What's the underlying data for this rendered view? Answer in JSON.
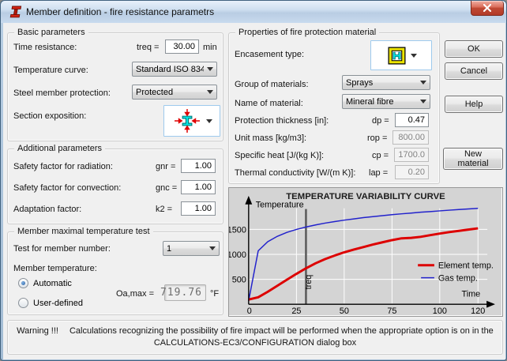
{
  "window": {
    "title": "Member definition  - fire resistance parametrs"
  },
  "basic": {
    "legend": "Basic parameters",
    "time_resistance_label": "Time resistance:",
    "treq_prefix": "treq =",
    "treq_value": "30.00",
    "treq_unit": "min",
    "temperature_curve_label": "Temperature curve:",
    "temperature_curve_value": "Standard ISO 834",
    "steel_protection_label": "Steel member protection:",
    "steel_protection_value": "Protected",
    "section_exposition_label": "Section exposition:",
    "section_exposition_icon": "i-section-exposed-four-sides-icon"
  },
  "additional": {
    "legend": "Additional parameters",
    "radiation_label": "Safety factor for radiation:",
    "radiation_prefix": "gnr =",
    "radiation_value": "1.00",
    "convection_label": "Safety factor for convection:",
    "convection_prefix": "gnc =",
    "convection_value": "1.00",
    "adaptation_label": "Adaptation factor:",
    "adaptation_prefix": "k2 =",
    "adaptation_value": "1.00"
  },
  "member_test": {
    "legend": "Member maximal temperature test",
    "test_number_label": "Test for member number:",
    "test_number_value": "1",
    "member_temperature_label": "Member temperature:",
    "automatic_label": "Automatic",
    "automatic_selected": true,
    "user_defined_label": "User-defined",
    "oamax_prefix": "Oa,max =",
    "oamax_value": "719.76",
    "oamax_unit": "°F"
  },
  "protection": {
    "legend": "Properties of fire protection material",
    "encasement_label": "Encasement type:",
    "encasement_icon": "box-encasement-icon",
    "group_label": "Group of materials:",
    "group_value": "Sprays",
    "name_label": "Name of material:",
    "name_value": "Mineral fibre",
    "thickness_label": "Protection thickness [in]:",
    "thickness_prefix": "dp =",
    "thickness_value": "0.47",
    "unit_mass_label": "Unit mass [kg/m3]:",
    "unit_mass_prefix": "rop =",
    "unit_mass_value": "800.00",
    "specific_heat_label": "Specific heat  [J/(kg K)]:",
    "specific_heat_prefix": "cp =",
    "specific_heat_value": "1700.0",
    "conductivity_label": "Thermal conductivity  [W/(m K)]:",
    "conductivity_prefix": "lap =",
    "conductivity_value": "0.20"
  },
  "buttons": {
    "ok": "OK",
    "cancel": "Cancel",
    "help": "Help",
    "new_material": "New material"
  },
  "warning": {
    "prefix": "Warning !!!",
    "line1": "Calculations recognizing the possibility of fire impact will be performed when the appropriate option is on in the",
    "line2": "CALCULATIONS-EC3/CONFIGURATION dialog box"
  },
  "chart_data": {
    "type": "line",
    "title": "TEMPERATURE VARIABILITY CURVE",
    "xlabel": "Time",
    "ylabel": "Temperature",
    "xlim": [
      0,
      120
    ],
    "ylim": [
      0,
      1950
    ],
    "x_ticks": [
      0,
      25,
      50,
      75,
      100,
      120
    ],
    "y_ticks": [
      500,
      1000,
      1500
    ],
    "grid": true,
    "legend_position": "right-middle",
    "annotations": [
      {
        "type": "vline",
        "x": 30,
        "label": "treq",
        "color": "#5c5c5c"
      }
    ],
    "series": [
      {
        "name": "Element temp.",
        "color": "#dd0000",
        "width": 3,
        "x": [
          0,
          5,
          10,
          15,
          20,
          25,
          30,
          35,
          40,
          45,
          50,
          55,
          60,
          65,
          70,
          75,
          80,
          85,
          90,
          95,
          100,
          105,
          110,
          115,
          120
        ],
        "y": [
          95,
          140,
          250,
          370,
          490,
          610,
          720,
          820,
          905,
          975,
          1040,
          1095,
          1145,
          1195,
          1240,
          1285,
          1320,
          1330,
          1350,
          1385,
          1415,
          1445,
          1470,
          1495,
          1520
        ]
      },
      {
        "name": "Gas temp.",
        "color": "#2222cc",
        "width": 1.5,
        "x": [
          0,
          5,
          10,
          15,
          20,
          25,
          30,
          35,
          40,
          45,
          50,
          55,
          60,
          65,
          70,
          75,
          80,
          85,
          90,
          95,
          100,
          105,
          110,
          115,
          120
        ],
        "y": [
          68,
          1070,
          1253,
          1361,
          1439,
          1498,
          1547,
          1589,
          1625,
          1656,
          1685,
          1710,
          1734,
          1755,
          1775,
          1794,
          1811,
          1827,
          1843,
          1857,
          1871,
          1884,
          1897,
          1909,
          1920
        ]
      }
    ]
  }
}
